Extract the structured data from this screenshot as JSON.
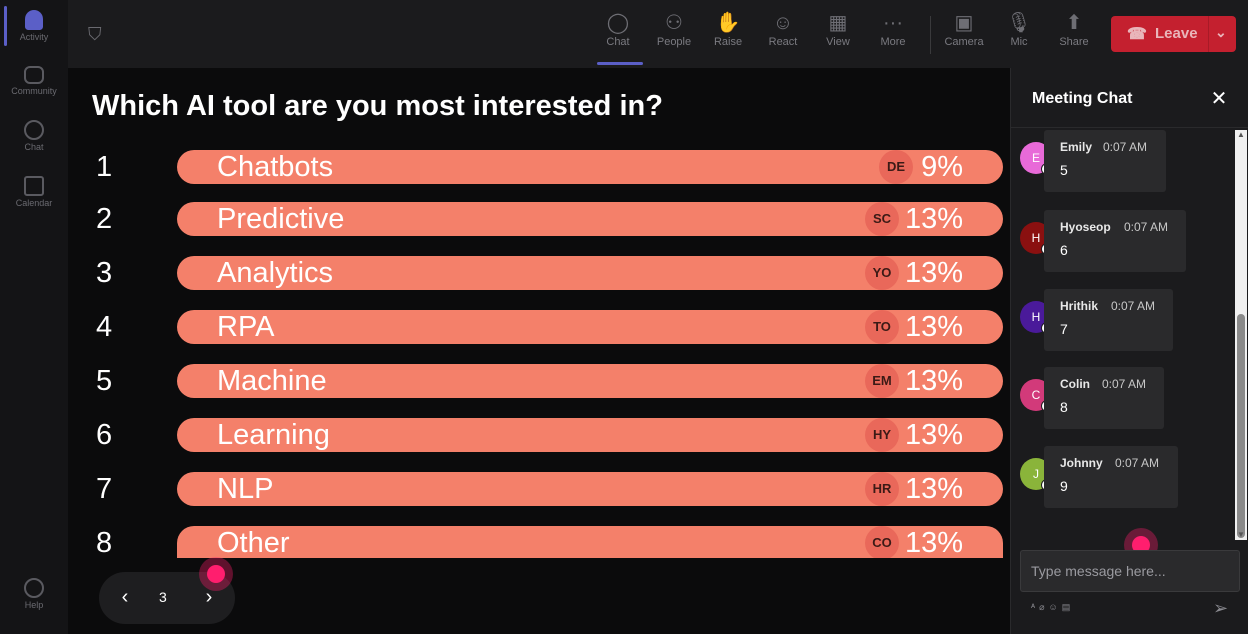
{
  "rail": {
    "items": [
      {
        "label": "Activity",
        "active": true
      },
      {
        "label": "Community"
      },
      {
        "label": "Chat"
      },
      {
        "label": "Calendar"
      }
    ],
    "help_label": "Help"
  },
  "toolbar": {
    "items": [
      {
        "label": "Chat",
        "icon": "chat-icon",
        "glyph": "◯"
      },
      {
        "label": "People",
        "icon": "people-icon",
        "glyph": "⚇"
      },
      {
        "label": "Raise",
        "icon": "raise-hand-icon",
        "glyph": "✋"
      },
      {
        "label": "React",
        "icon": "smiley-icon",
        "glyph": "☺"
      },
      {
        "label": "View",
        "icon": "grid-view-icon",
        "glyph": "▦"
      },
      {
        "label": "More",
        "icon": "more-icon",
        "glyph": "···"
      },
      {
        "label": "Camera",
        "icon": "camera-off-icon",
        "glyph": "▣"
      },
      {
        "label": "Mic",
        "icon": "mic-icon",
        "glyph": "🎙"
      },
      {
        "label": "Share",
        "icon": "share-icon",
        "glyph": "⬆"
      }
    ],
    "leave_label": "Leave"
  },
  "poll": {
    "question": "Which AI tool are you most interested in?",
    "options": [
      {
        "rank": "1",
        "label": "Chatbots",
        "initials": "DE",
        "percent": "9%"
      },
      {
        "rank": "2",
        "label": "Predictive",
        "initials": "SC",
        "percent": "13%"
      },
      {
        "rank": "3",
        "label": "Analytics",
        "initials": "YO",
        "percent": "13%"
      },
      {
        "rank": "4",
        "label": "RPA",
        "initials": "TO",
        "percent": "13%"
      },
      {
        "rank": "5",
        "label": "Machine",
        "initials": "EM",
        "percent": "13%"
      },
      {
        "rank": "6",
        "label": "Learning",
        "initials": "HY",
        "percent": "13%"
      },
      {
        "rank": "7",
        "label": "NLP",
        "initials": "HR",
        "percent": "13%"
      },
      {
        "rank": "8",
        "label": "Other",
        "initials": "CO",
        "percent": "13%"
      }
    ],
    "page": "3"
  },
  "chat": {
    "title": "Meeting Chat",
    "messages": [
      {
        "initial": "E",
        "name": "Emily",
        "time": "0:07 AM",
        "text": "5",
        "color": "#e86ad8"
      },
      {
        "initial": "H",
        "name": "Hyoseop",
        "time": "0:07 AM",
        "text": "6",
        "color": "#8a1010"
      },
      {
        "initial": "H",
        "name": "Hrithik",
        "time": "0:07 AM",
        "text": "7",
        "color": "#4a1a9a"
      },
      {
        "initial": "C",
        "name": "Colin",
        "time": "0:07 AM",
        "text": "8",
        "color": "#d23a7a"
      },
      {
        "initial": "J",
        "name": "Johnny",
        "time": "0:07 AM",
        "text": "9",
        "color": "#8ab43a"
      }
    ],
    "input_placeholder": "Type message here..."
  },
  "colors": {
    "bar": "#f4806a",
    "leave": "#c4202f",
    "accent": "#5b5fc7",
    "cursor": "#ff1e6e"
  }
}
